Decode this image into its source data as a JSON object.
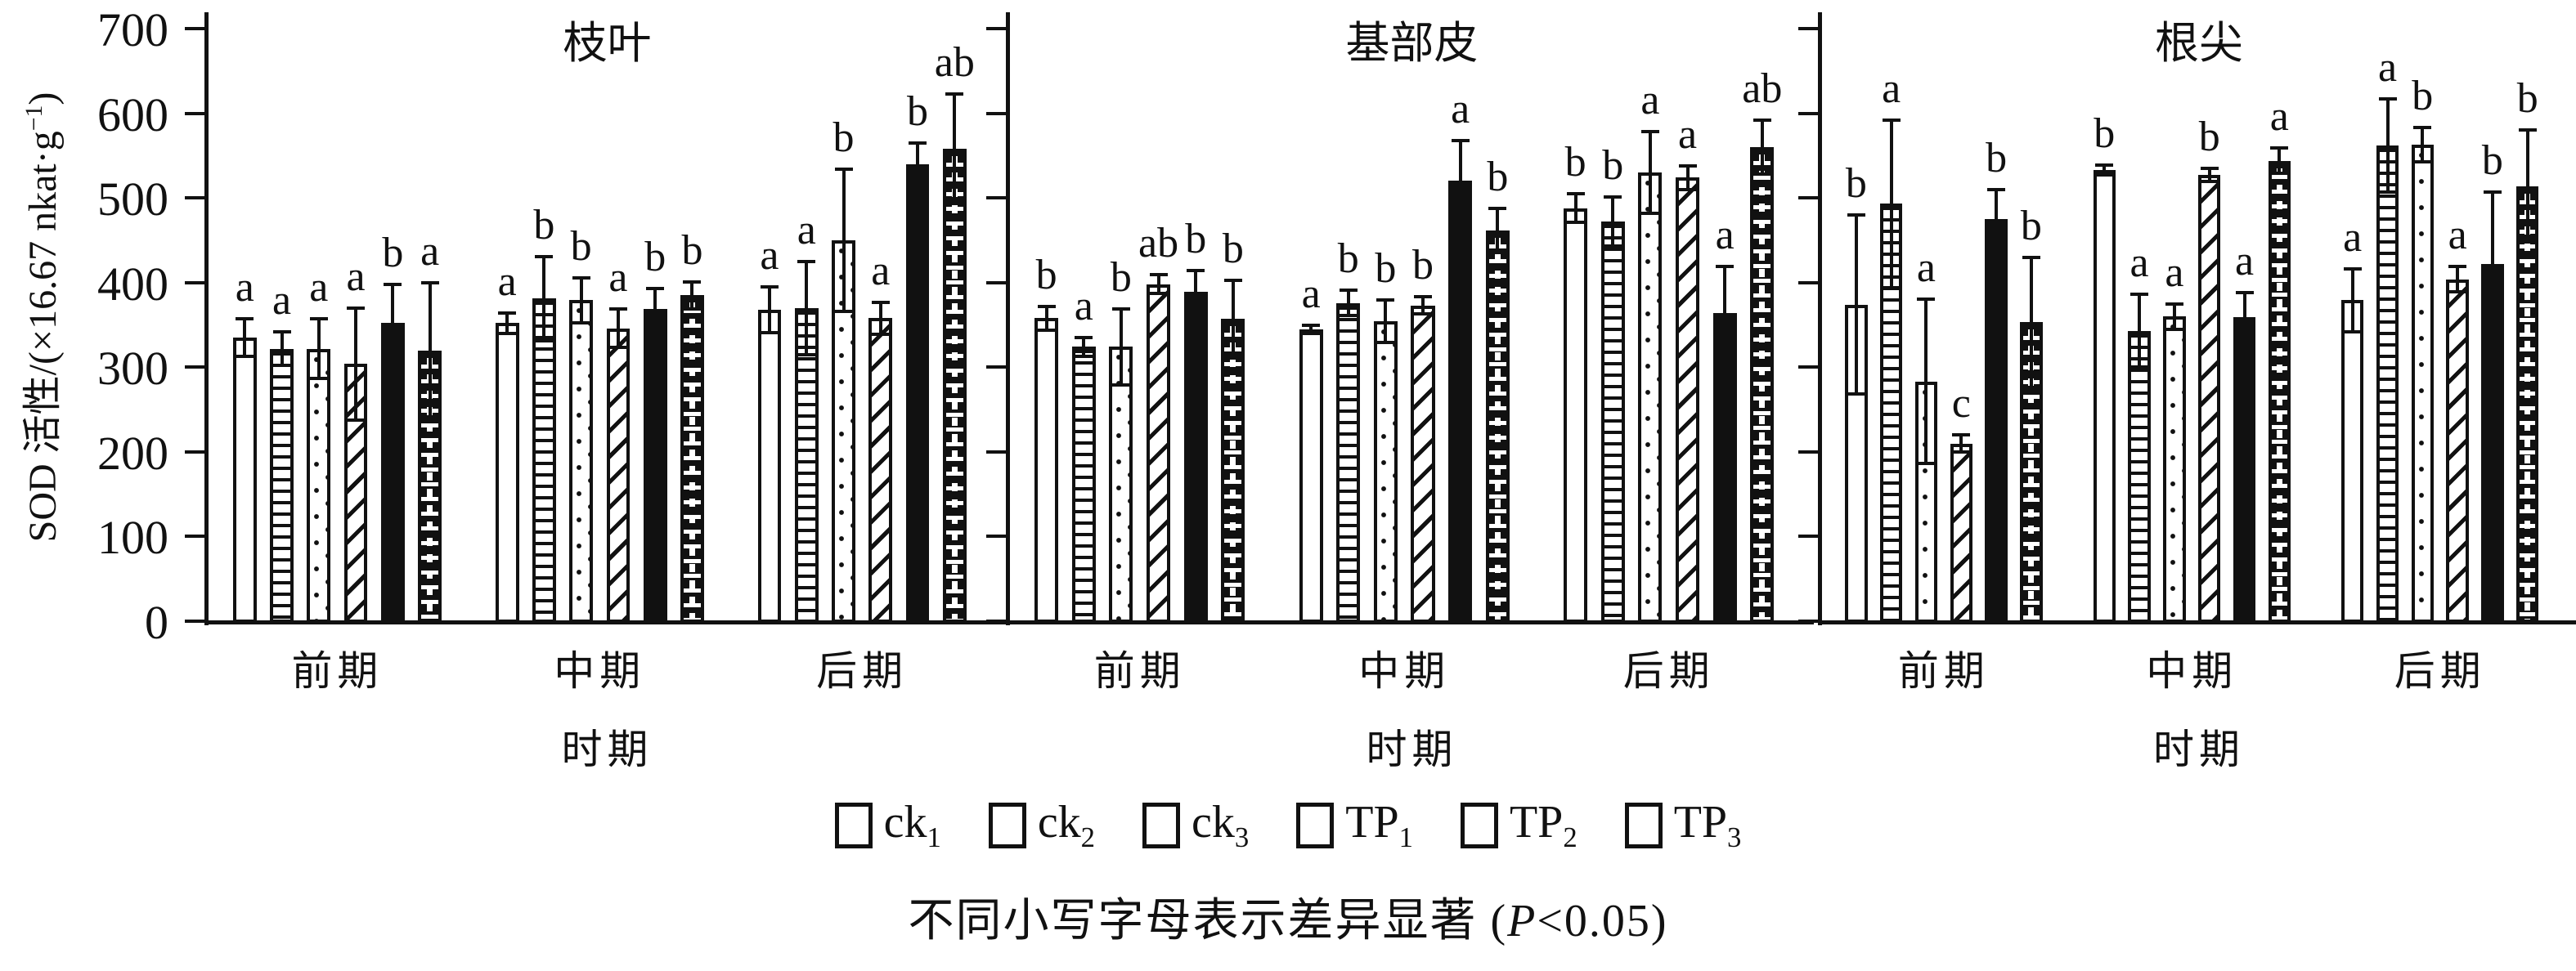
{
  "y_axis": {
    "label_prefix": "SOD 活性/(×16.67 nkat·g",
    "label_sup": "−1",
    "label_suffix": ")",
    "ticks": [
      700,
      600,
      500,
      400,
      300,
      200,
      100,
      0
    ],
    "range": [
      0,
      700
    ]
  },
  "x_axis": {
    "title": "时期",
    "categories": [
      "前期",
      "中期",
      "后期"
    ]
  },
  "legend": {
    "items": [
      {
        "base": "ck",
        "sub": "1",
        "pattern": "plain"
      },
      {
        "base": "ck",
        "sub": "2",
        "pattern": "hlines"
      },
      {
        "base": "ck",
        "sub": "3",
        "pattern": "dots"
      },
      {
        "base": "TP",
        "sub": "1",
        "pattern": "diag"
      },
      {
        "base": "TP",
        "sub": "2",
        "pattern": "solid"
      },
      {
        "base": "TP",
        "sub": "3",
        "pattern": "brick"
      }
    ]
  },
  "caption": {
    "prefix": "不同小写字母表示差异显著 (",
    "italic_p": "P",
    "suffix": "<0.05)"
  },
  "colors": {
    "ink": "#111111",
    "background": "#ffffff"
  },
  "chart_data": [
    {
      "type": "bar",
      "title": "枝叶",
      "ylabel": "SOD 活性/(×16.67 nkat·g−1)",
      "xlabel": "时期",
      "ylim": [
        0,
        700
      ],
      "grid": false,
      "legend_position": "bottom",
      "categories": [
        "前期",
        "中期",
        "后期"
      ],
      "series": [
        {
          "name": "ck1",
          "pattern": "plain",
          "values": [
            335,
            352,
            368
          ],
          "errors": [
            22,
            12,
            27
          ],
          "letters": [
            "a",
            "a",
            "a"
          ]
        },
        {
          "name": "ck2",
          "pattern": "hlines",
          "values": [
            322,
            381,
            370
          ],
          "errors": [
            20,
            50,
            55
          ],
          "letters": [
            "a",
            "b",
            "a"
          ]
        },
        {
          "name": "ck3",
          "pattern": "dots",
          "values": [
            322,
            379,
            450
          ],
          "errors": [
            35,
            27,
            84
          ],
          "letters": [
            "a",
            "b",
            "b"
          ]
        },
        {
          "name": "TP1",
          "pattern": "diag",
          "values": [
            304,
            346,
            358
          ],
          "errors": [
            66,
            23,
            19
          ],
          "letters": [
            "a",
            "a",
            "a"
          ]
        },
        {
          "name": "TP2",
          "pattern": "solid",
          "values": [
            352,
            369,
            540
          ],
          "errors": [
            46,
            24,
            25
          ],
          "letters": [
            "b",
            "b",
            "b"
          ]
        },
        {
          "name": "TP3",
          "pattern": "brick",
          "values": [
            320,
            385,
            558
          ],
          "errors": [
            80,
            16,
            65
          ],
          "letters": [
            "a",
            "b",
            "ab"
          ]
        }
      ]
    },
    {
      "type": "bar",
      "title": "基部皮",
      "ylabel": "SOD 活性/(×16.67 nkat·g−1)",
      "xlabel": "时期",
      "ylim": [
        0,
        700
      ],
      "grid": false,
      "legend_position": "bottom",
      "categories": [
        "前期",
        "中期",
        "后期"
      ],
      "series": [
        {
          "name": "ck1",
          "pattern": "plain",
          "values": [
            358,
            345,
            488
          ],
          "errors": [
            14,
            5,
            17
          ],
          "letters": [
            "b",
            "a",
            "b"
          ]
        },
        {
          "name": "ck2",
          "pattern": "hlines",
          "values": [
            324,
            376,
            472
          ],
          "errors": [
            11,
            15,
            29
          ],
          "letters": [
            "a",
            "b",
            "b"
          ]
        },
        {
          "name": "ck3",
          "pattern": "dots",
          "values": [
            324,
            354,
            530
          ],
          "errors": [
            45,
            25,
            48
          ],
          "letters": [
            "b",
            "b",
            "a"
          ]
        },
        {
          "name": "TP1",
          "pattern": "diag",
          "values": [
            398,
            373,
            524
          ],
          "errors": [
            11,
            10,
            14
          ],
          "letters": [
            "ab",
            "b",
            "a"
          ]
        },
        {
          "name": "TP2",
          "pattern": "solid",
          "values": [
            389,
            520,
            364
          ],
          "errors": [
            25,
            48,
            55
          ],
          "letters": [
            "b",
            "a",
            "a"
          ]
        },
        {
          "name": "TP3",
          "pattern": "brick",
          "values": [
            357,
            462,
            560
          ],
          "errors": [
            46,
            26,
            32
          ],
          "letters": [
            "b",
            "b",
            "ab"
          ]
        }
      ]
    },
    {
      "type": "bar",
      "title": "根尖",
      "ylabel": "SOD 活性/(×16.67 nkat·g−1)",
      "xlabel": "时期",
      "ylim": [
        0,
        700
      ],
      "grid": false,
      "legend_position": "bottom",
      "categories": [
        "前期",
        "中期",
        "后期"
      ],
      "series": [
        {
          "name": "ck1",
          "pattern": "plain",
          "values": [
            374,
            533,
            379
          ],
          "errors": [
            106,
            6,
            37
          ],
          "letters": [
            "b",
            "b",
            "a"
          ]
        },
        {
          "name": "ck2",
          "pattern": "hlines",
          "values": [
            493,
            343,
            562
          ],
          "errors": [
            99,
            43,
            55
          ],
          "letters": [
            "a",
            "a",
            "a"
          ]
        },
        {
          "name": "ck3",
          "pattern": "dots",
          "values": [
            283,
            360,
            563
          ],
          "errors": [
            97,
            15,
            20
          ],
          "letters": [
            "a",
            "a",
            "b"
          ]
        },
        {
          "name": "TP1",
          "pattern": "diag",
          "values": [
            210,
            527,
            404
          ],
          "errors": [
            10,
            8,
            15
          ],
          "letters": [
            "c",
            "b",
            "a"
          ]
        },
        {
          "name": "TP2",
          "pattern": "solid",
          "values": [
            475,
            359,
            422
          ],
          "errors": [
            35,
            29,
            85
          ],
          "letters": [
            "b",
            "a",
            "b"
          ]
        },
        {
          "name": "TP3",
          "pattern": "brick",
          "values": [
            353,
            544,
            514
          ],
          "errors": [
            77,
            15,
            66
          ],
          "letters": [
            "b",
            "a",
            "b"
          ]
        }
      ]
    }
  ]
}
